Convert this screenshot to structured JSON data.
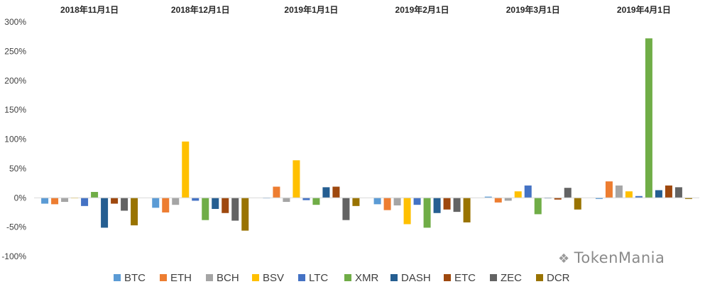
{
  "chart_data": {
    "type": "bar",
    "categories": [
      "2018年11月1日",
      "2018年12月1日",
      "2019年1月1日",
      "2019年2月1日",
      "2019年3月1日",
      "2019年4月1日"
    ],
    "ylim": [
      -100,
      300
    ],
    "yticks": [
      -100,
      -50,
      0,
      50,
      100,
      150,
      200,
      250,
      300
    ],
    "ytick_labels": [
      "-100%",
      "-50%",
      "0%",
      "50%",
      "100%",
      "150%",
      "200%",
      "250%",
      "300%"
    ],
    "grid": false,
    "legend_position": "bottom",
    "series": [
      {
        "name": "BTC",
        "color": "#5B9BD5",
        "values": [
          -10,
          -17,
          -1,
          -11,
          2,
          -2
        ]
      },
      {
        "name": "ETH",
        "color": "#ED7D31",
        "values": [
          -11,
          -25,
          19,
          -21,
          -8,
          28
        ]
      },
      {
        "name": "BCH",
        "color": "#A5A5A5",
        "values": [
          -7,
          -12,
          -7,
          -13,
          -5,
          21
        ]
      },
      {
        "name": "BSV",
        "color": "#FFC000",
        "values": [
          0,
          96,
          64,
          -45,
          11,
          11
        ]
      },
      {
        "name": "LTC",
        "color": "#4472C4",
        "values": [
          -14,
          -5,
          -4,
          -12,
          21,
          3
        ]
      },
      {
        "name": "XMR",
        "color": "#70AD47",
        "values": [
          10,
          -38,
          -12,
          -51,
          -28,
          272
        ]
      },
      {
        "name": "DASH",
        "color": "#255E91",
        "values": [
          -51,
          -19,
          18,
          -26,
          -1,
          13
        ]
      },
      {
        "name": "ETC",
        "color": "#9E480E",
        "values": [
          -10,
          -26,
          19,
          -20,
          -3,
          21
        ]
      },
      {
        "name": "ZEC",
        "color": "#636363",
        "values": [
          -22,
          -39,
          -38,
          -24,
          17,
          18
        ]
      },
      {
        "name": "DCR",
        "color": "#997300",
        "values": [
          -47,
          -56,
          -14,
          -42,
          -20,
          -2
        ]
      }
    ]
  },
  "watermark": {
    "text": "TokenMania",
    "icon": "wechat-icon"
  }
}
